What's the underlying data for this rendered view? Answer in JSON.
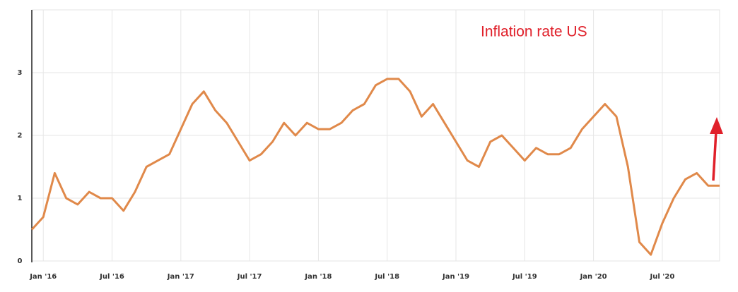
{
  "chart_data": {
    "type": "line",
    "annotation": "Inflation rate US",
    "categories": [
      null,
      "Jan '16",
      null,
      null,
      null,
      null,
      null,
      "Jul '16",
      null,
      null,
      null,
      null,
      null,
      "Jan '17",
      null,
      null,
      null,
      null,
      null,
      "Jul '17",
      null,
      null,
      null,
      null,
      null,
      "Jan '18",
      null,
      null,
      null,
      null,
      null,
      "Jul '18",
      null,
      null,
      null,
      null,
      null,
      "Jan '19",
      null,
      null,
      null,
      null,
      null,
      "Jul '19",
      null,
      null,
      null,
      null,
      null,
      "Jan '20",
      null,
      null,
      null,
      null,
      null,
      "Jul '20",
      null,
      null,
      null,
      null,
      null
    ],
    "series": [
      {
        "name": "Inflation rate US",
        "color": "#e0894a",
        "values": [
          0.5,
          0.7,
          1.4,
          1.0,
          0.9,
          1.1,
          1.0,
          1.0,
          0.8,
          1.1,
          1.5,
          1.6,
          1.7,
          2.1,
          2.5,
          2.7,
          2.4,
          2.2,
          1.9,
          1.6,
          1.7,
          1.9,
          2.2,
          2.0,
          2.2,
          2.1,
          2.1,
          2.2,
          2.4,
          2.5,
          2.8,
          2.9,
          2.9,
          2.7,
          2.3,
          2.5,
          2.2,
          1.9,
          1.6,
          1.5,
          1.9,
          2.0,
          1.8,
          1.6,
          1.8,
          1.7,
          1.7,
          1.8,
          2.1,
          2.3,
          2.5,
          2.3,
          1.5,
          0.3,
          0.1,
          0.6,
          1.0,
          1.3,
          1.4,
          1.2,
          1.2
        ]
      }
    ],
    "ylim": [
      0,
      4
    ],
    "yticks": [
      0,
      1,
      2,
      3
    ],
    "grid": true
  }
}
